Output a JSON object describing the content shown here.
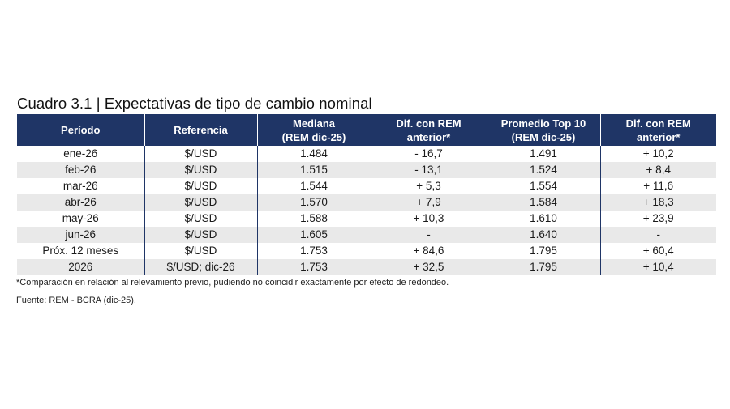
{
  "title": "Cuadro 3.1 | Expectativas de tipo de cambio nominal",
  "headers": [
    [
      "Período"
    ],
    [
      "Referencia"
    ],
    [
      "Mediana",
      "(REM dic-25)"
    ],
    [
      "Dif. con REM",
      "anterior*"
    ],
    [
      "Promedio Top 10",
      "(REM dic-25)"
    ],
    [
      "Dif. con REM",
      "anterior*"
    ]
  ],
  "rows": [
    [
      "ene-26",
      "$/USD",
      "1.484",
      "- 16,7",
      "1.491",
      "+ 10,2"
    ],
    [
      "feb-26",
      "$/USD",
      "1.515",
      "- 13,1",
      "1.524",
      "+ 8,4"
    ],
    [
      "mar-26",
      "$/USD",
      "1.544",
      "+ 5,3",
      "1.554",
      "+ 11,6"
    ],
    [
      "abr-26",
      "$/USD",
      "1.570",
      "+ 7,9",
      "1.584",
      "+ 18,3"
    ],
    [
      "may-26",
      "$/USD",
      "1.588",
      "+ 10,3",
      "1.610",
      "+ 23,9"
    ],
    [
      "jun-26",
      "$/USD",
      "1.605",
      "-",
      "1.640",
      "-"
    ],
    [
      "Próx. 12 meses",
      "$/USD",
      "1.753",
      "+ 84,6",
      "1.795",
      "+ 60,4"
    ],
    [
      "2026",
      "$/USD; dic-26",
      "1.753",
      "+ 32,5",
      "1.795",
      "+ 10,4"
    ]
  ],
  "footnote": "*Comparación en relación al relevamiento previo, pudiendo no coincidir exactamente por efecto de redondeo.",
  "source": "Fuente: REM - BCRA (dic-25).",
  "colors": {
    "header_bg": "#1f3566",
    "stripe_bg": "#e9e9e9"
  }
}
